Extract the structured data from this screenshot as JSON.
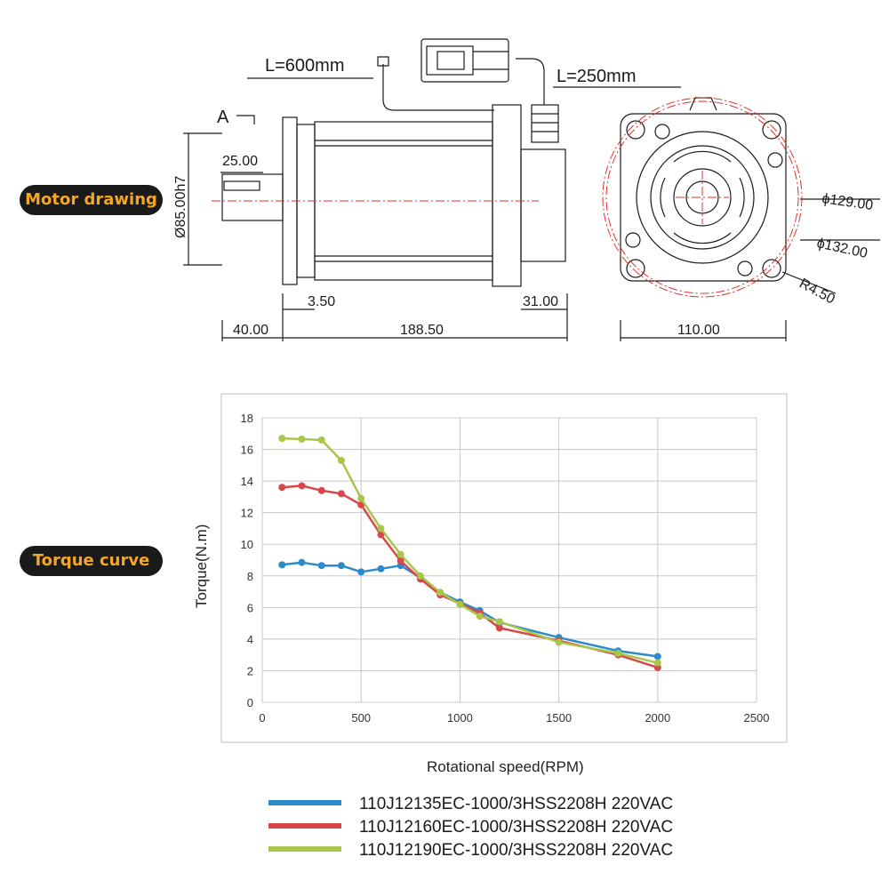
{
  "sections": {
    "drawing_label": "Motor drawing",
    "torque_label": "Torque curve"
  },
  "drawing": {
    "cable_length_1": "L=600mm",
    "cable_length_2": "L=250mm",
    "view_marker": "A",
    "dims": {
      "shaft_key": "25.00",
      "shaft_dia": "Ø85.00h7",
      "flange_step": "3.50",
      "rear_len": "31.00",
      "shaft_len": "40.00",
      "body_len": "188.50",
      "dia_129": "ϕ129.00",
      "dia_132": "ϕ132.00",
      "radius": "R4.50",
      "width": "110.00"
    }
  },
  "colors": {
    "series1": "#2e8bc9",
    "series2": "#d9474b",
    "series3": "#a9c54a",
    "label_bg": "#1a1a1a",
    "label_text": "#f5a623",
    "centerline": "#e0302a"
  },
  "chart_data": {
    "type": "line",
    "title": "",
    "xlabel": "Rotational speed(RPM)",
    "ylabel": "Torque(N.m)",
    "xlim": [
      0,
      2500
    ],
    "ylim": [
      0,
      18
    ],
    "xticks": [
      0,
      500,
      1000,
      1500,
      2000,
      2500
    ],
    "yticks": [
      0,
      2,
      4,
      6,
      8,
      10,
      12,
      14,
      16,
      18
    ],
    "grid": true,
    "legend_position": "bottom",
    "series": [
      {
        "name": "110J12135EC-1000/3HSS2208H  220VAC",
        "x": [
          100,
          200,
          300,
          400,
          500,
          600,
          700,
          800,
          900,
          1000,
          1100,
          1200,
          1500,
          1800,
          2000
        ],
        "y": [
          8.7,
          8.85,
          8.65,
          8.65,
          8.25,
          8.45,
          8.65,
          7.9,
          6.95,
          6.35,
          5.8,
          5.05,
          4.1,
          3.25,
          2.9
        ]
      },
      {
        "name": "110J12160EC-1000/3HSS2208H  220VAC",
        "x": [
          100,
          200,
          300,
          400,
          500,
          600,
          700,
          800,
          900,
          1000,
          1100,
          1200,
          1500,
          1800,
          2000
        ],
        "y": [
          13.6,
          13.7,
          13.4,
          13.2,
          12.5,
          10.6,
          8.95,
          7.8,
          6.8,
          6.25,
          5.65,
          4.7,
          3.9,
          3.0,
          2.2
        ]
      },
      {
        "name": "110J12190EC-1000/3HSS2208H  220VAC",
        "x": [
          100,
          200,
          300,
          400,
          500,
          600,
          700,
          800,
          900,
          1000,
          1100,
          1200,
          1500,
          1800,
          2000
        ],
        "y": [
          16.7,
          16.65,
          16.6,
          15.3,
          12.9,
          11.0,
          9.35,
          8.0,
          6.95,
          6.2,
          5.45,
          5.1,
          3.8,
          3.1,
          2.5
        ]
      }
    ]
  }
}
